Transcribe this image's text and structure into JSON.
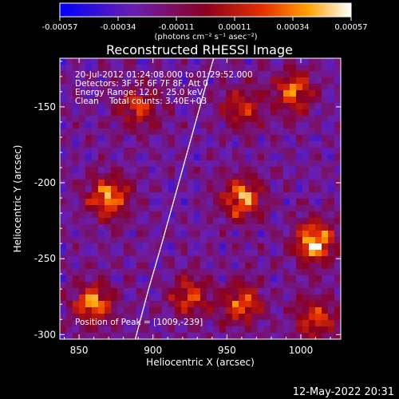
{
  "chart_data": {
    "type": "heatmap",
    "title": "Reconstructed RHESSI Image",
    "xlabel": "Heliocentric X (arcsec)",
    "ylabel": "Heliocentric Y (arcsec)",
    "xlim": [
      837,
      1027
    ],
    "ylim": [
      -303,
      -118
    ],
    "x_ticks": [
      850,
      900,
      950,
      1000
    ],
    "y_ticks": [
      -300,
      -250,
      -200,
      -150
    ],
    "colorbar": {
      "range": [
        -0.00057,
        0.00057
      ],
      "tick_labels": [
        "-0.00057",
        "-0.00034",
        "-0.00011",
        "0.00011",
        "0.00034",
        "0.00057"
      ],
      "label": "(photons cm⁻² s⁻¹ asec⁻²)"
    },
    "info_lines": [
      "20-Jul-2012 01:24:08.000 to 01:29:52.000",
      "Detectors: 3F 5F 6F 7F 8F, Att 0",
      "Energy Range: 12.0 - 25.0 keV",
      "Clean    Total counts: 3.40E+03"
    ],
    "peak_label": "Position of Peak = [1009,-239]",
    "peak": [
      1009,
      -239
    ],
    "limb_curve": [
      [
        888,
        -303
      ],
      [
        897,
        -270
      ],
      [
        906,
        -240
      ],
      [
        916,
        -205
      ],
      [
        926,
        -170
      ],
      [
        936,
        -135
      ],
      [
        941,
        -118
      ]
    ],
    "hot_spots": [
      {
        "x": 1009,
        "y": -239,
        "level": 1.0
      },
      {
        "x": 960,
        "y": -210,
        "level": 0.85
      },
      {
        "x": 870,
        "y": -210,
        "level": 0.8
      },
      {
        "x": 860,
        "y": -280,
        "level": 0.8
      },
      {
        "x": 995,
        "y": -140,
        "level": 0.7
      },
      {
        "x": 960,
        "y": -280,
        "level": 0.7
      },
      {
        "x": 1010,
        "y": -290,
        "level": 0.65
      },
      {
        "x": 890,
        "y": -150,
        "level": 0.6
      },
      {
        "x": 960,
        "y": -150,
        "level": 0.55
      },
      {
        "x": 925,
        "y": -275,
        "level": 0.6
      }
    ]
  },
  "footer": {
    "date": "12-May-2022 20:31"
  }
}
